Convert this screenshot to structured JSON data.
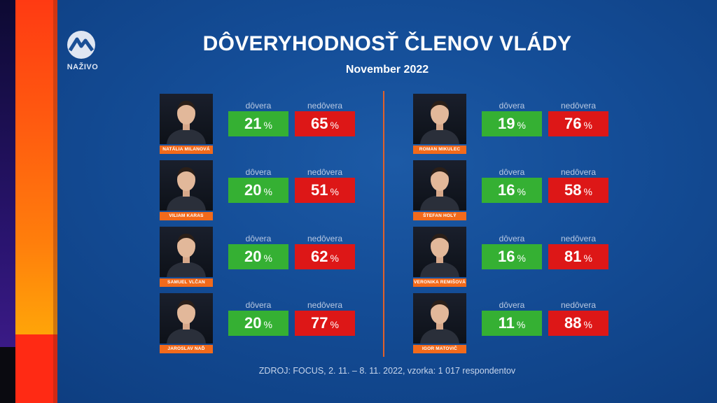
{
  "channel": {
    "live_label": "NAŽIVO"
  },
  "header": {
    "title": "DÔVERYHODNOSŤ ČLENOV VLÁDY",
    "subtitle": "November 2022"
  },
  "labels": {
    "trust": "dôvera",
    "distrust": "nedôvera",
    "percent_sign": "%"
  },
  "footer": {
    "source": "ZDROJ: FOCUS, 2. 11. – 8. 11. 2022, vzorka: 1 017 respondentov"
  },
  "colors": {
    "trust": "#35b033",
    "distrust": "#dd1717",
    "name_bar": "#f26a1b",
    "accent_band": "#ff7e0c"
  },
  "chart_data": {
    "type": "table",
    "title": "DÔVERYHODNOSŤ ČLENOV VLÁDY",
    "subtitle": "November 2022",
    "columns": [
      "dôvera",
      "nedôvera"
    ],
    "unit": "%",
    "rows": [
      {
        "name": "NATÁLIA MILANOVÁ",
        "trust": 21,
        "distrust": 65
      },
      {
        "name": "VILIAM KARAS",
        "trust": 20,
        "distrust": 51
      },
      {
        "name": "SAMUEL VLČAN",
        "trust": 20,
        "distrust": 62
      },
      {
        "name": "JAROSLAV NAĎ",
        "trust": 20,
        "distrust": 77
      },
      {
        "name": "ROMAN MIKULEC",
        "trust": 19,
        "distrust": 76
      },
      {
        "name": "ŠTEFAN HOLÝ",
        "trust": 16,
        "distrust": 58
      },
      {
        "name": "VERONIKA REMIŠOVÁ",
        "trust": 16,
        "distrust": 81
      },
      {
        "name": "IGOR MATOVIČ",
        "trust": 11,
        "distrust": 88
      }
    ]
  }
}
